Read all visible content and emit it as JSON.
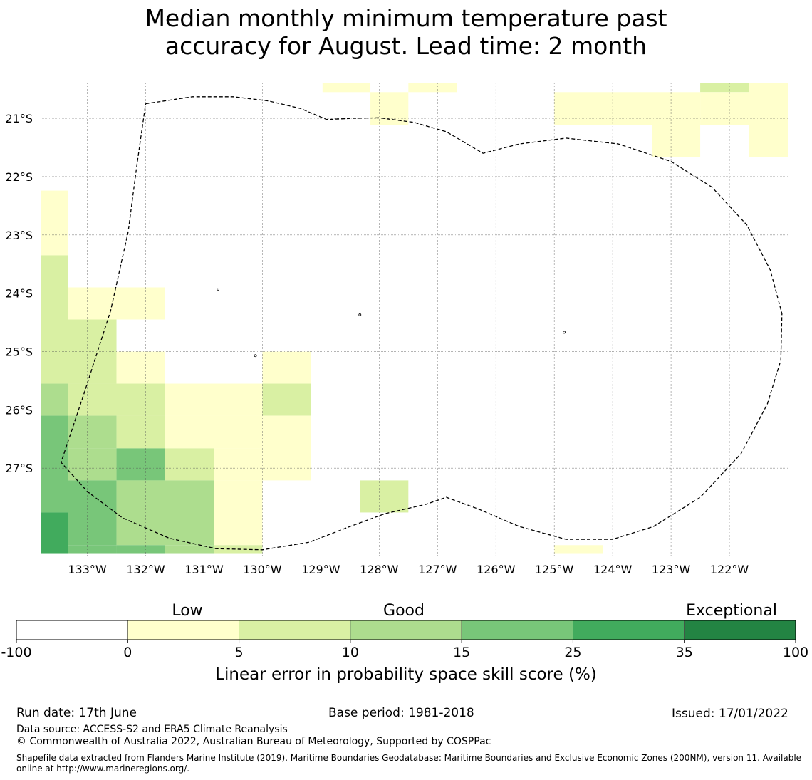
{
  "title_line1": "Median monthly minimum temperature past",
  "title_line2": "accuracy for August. Lead time: 2 month",
  "map": {
    "lat_ticks": [
      {
        "value": -21,
        "label": "21°S"
      },
      {
        "value": -22,
        "label": "22°S"
      },
      {
        "value": -23,
        "label": "23°S"
      },
      {
        "value": -24,
        "label": "24°S"
      },
      {
        "value": -25,
        "label": "25°S"
      },
      {
        "value": -26,
        "label": "26°S"
      },
      {
        "value": -27,
        "label": "27°S"
      }
    ],
    "lon_ticks": [
      {
        "value": -133,
        "label": "133°W"
      },
      {
        "value": -132,
        "label": "132°W"
      },
      {
        "value": -131,
        "label": "131°W"
      },
      {
        "value": -130,
        "label": "130°W"
      },
      {
        "value": -129,
        "label": "129°W"
      },
      {
        "value": -128,
        "label": "128°W"
      },
      {
        "value": -127,
        "label": "127°W"
      },
      {
        "value": -126,
        "label": "126°W"
      },
      {
        "value": -125,
        "label": "125°W"
      },
      {
        "value": -124,
        "label": "124°W"
      },
      {
        "value": -123,
        "label": "123°W"
      },
      {
        "value": -122,
        "label": "122°W"
      }
    ],
    "lon_range": [
      -133.8,
      -121.0
    ],
    "lat_range": [
      -28.5,
      -20.4
    ],
    "grid": true,
    "colors": [
      "#ffffff",
      "#ffffcc",
      "#d9f0a3",
      "#addd8e",
      "#78c679",
      "#41ab5d",
      "#238443"
    ],
    "cells": [
      {
        "lon": [
          -128.97,
          -128.15
        ],
        "lat": [
          -20.55,
          -20.4
        ],
        "cls": 1
      },
      {
        "lon": [
          -127.5,
          -126.67
        ],
        "lat": [
          -20.55,
          -20.4
        ],
        "cls": 1
      },
      {
        "lon": [
          -122.5,
          -121.67
        ],
        "lat": [
          -20.55,
          -20.4
        ],
        "cls": 2
      },
      {
        "lon": [
          -128.15,
          -127.5
        ],
        "lat": [
          -21.11,
          -20.55
        ],
        "cls": 1
      },
      {
        "lon": [
          -125.0,
          -123.33
        ],
        "lat": [
          -21.11,
          -20.55
        ],
        "cls": 1
      },
      {
        "lon": [
          -123.33,
          -122.5
        ],
        "lat": [
          -21.66,
          -20.55
        ],
        "cls": 1
      },
      {
        "lon": [
          -122.5,
          -121.67
        ],
        "lat": [
          -21.11,
          -20.55
        ],
        "cls": 1
      },
      {
        "lon": [
          -121.67,
          -121.0
        ],
        "lat": [
          -21.66,
          -20.4
        ],
        "cls": 1
      },
      {
        "lon": [
          -133.8,
          -133.33
        ],
        "lat": [
          -23.35,
          -22.24
        ],
        "cls": 1
      },
      {
        "lon": [
          -133.8,
          -133.33
        ],
        "lat": [
          -25.55,
          -23.35
        ],
        "cls": 2
      },
      {
        "lon": [
          -133.33,
          -131.67
        ],
        "lat": [
          -24.45,
          -23.9
        ],
        "cls": 1
      },
      {
        "lon": [
          -133.33,
          -132.5
        ],
        "lat": [
          -25.55,
          -24.45
        ],
        "cls": 2
      },
      {
        "lon": [
          -132.5,
          -131.67
        ],
        "lat": [
          -25.55,
          -25.0
        ],
        "cls": 1
      },
      {
        "lon": [
          -130.0,
          -129.17
        ],
        "lat": [
          -25.55,
          -25.0
        ],
        "cls": 1
      },
      {
        "lon": [
          -133.8,
          -133.33
        ],
        "lat": [
          -26.1,
          -25.55
        ],
        "cls": 3
      },
      {
        "lon": [
          -133.33,
          -131.67
        ],
        "lat": [
          -26.1,
          -25.55
        ],
        "cls": 2
      },
      {
        "lon": [
          -131.67,
          -130.0
        ],
        "lat": [
          -26.1,
          -25.55
        ],
        "cls": 1
      },
      {
        "lon": [
          -130.0,
          -129.17
        ],
        "lat": [
          -26.1,
          -25.55
        ],
        "cls": 2
      },
      {
        "lon": [
          -133.8,
          -133.33
        ],
        "lat": [
          -27.76,
          -26.1
        ],
        "cls": 4
      },
      {
        "lon": [
          -133.33,
          -132.5
        ],
        "lat": [
          -26.66,
          -26.1
        ],
        "cls": 3
      },
      {
        "lon": [
          -132.5,
          -131.67
        ],
        "lat": [
          -26.66,
          -26.1
        ],
        "cls": 2
      },
      {
        "lon": [
          -131.67,
          -130.0
        ],
        "lat": [
          -26.66,
          -26.1
        ],
        "cls": 1
      },
      {
        "lon": [
          -130.0,
          -129.17
        ],
        "lat": [
          -27.21,
          -26.1
        ],
        "cls": 1
      },
      {
        "lon": [
          -133.33,
          -132.5
        ],
        "lat": [
          -27.21,
          -26.66
        ],
        "cls": 3
      },
      {
        "lon": [
          -132.5,
          -131.67
        ],
        "lat": [
          -27.21,
          -26.66
        ],
        "cls": 4
      },
      {
        "lon": [
          -131.67,
          -130.83
        ],
        "lat": [
          -27.21,
          -26.66
        ],
        "cls": 2
      },
      {
        "lon": [
          -130.83,
          -130.0
        ],
        "lat": [
          -27.21,
          -26.66
        ],
        "cls": 1
      },
      {
        "lon": [
          -133.33,
          -132.5
        ],
        "lat": [
          -28.32,
          -27.21
        ],
        "cls": 4
      },
      {
        "lon": [
          -132.5,
          -130.83
        ],
        "lat": [
          -28.32,
          -27.21
        ],
        "cls": 3
      },
      {
        "lon": [
          -130.83,
          -130.0
        ],
        "lat": [
          -28.32,
          -27.21
        ],
        "cls": 1
      },
      {
        "lon": [
          -133.8,
          -133.33
        ],
        "lat": [
          -28.47,
          -27.76
        ],
        "cls": 5
      },
      {
        "lon": [
          -133.33,
          -132.5
        ],
        "lat": [
          -28.47,
          -28.32
        ],
        "cls": 4
      },
      {
        "lon": [
          -132.5,
          -131.67
        ],
        "lat": [
          -28.47,
          -28.32
        ],
        "cls": 4
      },
      {
        "lon": [
          -131.67,
          -130.83
        ],
        "lat": [
          -28.47,
          -28.32
        ],
        "cls": 3
      },
      {
        "lon": [
          -130.83,
          -130.0
        ],
        "lat": [
          -28.47,
          -28.32
        ],
        "cls": 2
      },
      {
        "lon": [
          -128.33,
          -127.5
        ],
        "lat": [
          -27.76,
          -27.21
        ],
        "cls": 2
      },
      {
        "lon": [
          -125.0,
          -124.17
        ],
        "lat": [
          -28.47,
          -28.32
        ],
        "cls": 1
      }
    ],
    "eez_boundary": [
      [
        -132.0,
        -20.75
      ],
      [
        -131.2,
        -20.63
      ],
      [
        -130.5,
        -20.63
      ],
      [
        -129.9,
        -20.7
      ],
      [
        -129.35,
        -20.83
      ],
      [
        -128.9,
        -21.02
      ],
      [
        -128.45,
        -21.0
      ],
      [
        -128.0,
        -20.99
      ],
      [
        -127.4,
        -21.07
      ],
      [
        -126.85,
        -21.23
      ],
      [
        -126.22,
        -21.6
      ],
      [
        -125.6,
        -21.44
      ],
      [
        -124.8,
        -21.34
      ],
      [
        -123.9,
        -21.44
      ],
      [
        -123.0,
        -21.74
      ],
      [
        -122.3,
        -22.18
      ],
      [
        -121.7,
        -22.83
      ],
      [
        -121.3,
        -23.6
      ],
      [
        -121.1,
        -24.35
      ],
      [
        -121.12,
        -25.15
      ],
      [
        -121.35,
        -25.9
      ],
      [
        -121.8,
        -26.75
      ],
      [
        -122.5,
        -27.5
      ],
      [
        -123.3,
        -28.0
      ],
      [
        -124.0,
        -28.22
      ],
      [
        -124.8,
        -28.22
      ],
      [
        -125.6,
        -28.0
      ],
      [
        -126.3,
        -27.7
      ],
      [
        -126.85,
        -27.5
      ],
      [
        -127.2,
        -27.62
      ],
      [
        -127.9,
        -27.78
      ],
      [
        -128.5,
        -28.0
      ],
      [
        -129.2,
        -28.27
      ],
      [
        -130.0,
        -28.4
      ],
      [
        -130.8,
        -28.38
      ],
      [
        -131.6,
        -28.2
      ],
      [
        -132.4,
        -27.85
      ],
      [
        -133.0,
        -27.4
      ],
      [
        -133.45,
        -26.9
      ],
      [
        -133.05,
        -25.7
      ],
      [
        -132.6,
        -24.3
      ],
      [
        -132.3,
        -22.95
      ],
      [
        -132.15,
        -21.8
      ],
      [
        -132.0,
        -20.75
      ]
    ],
    "islands": [
      [
        -130.76,
        -23.93
      ],
      [
        -128.33,
        -24.37
      ],
      [
        -130.12,
        -25.07
      ],
      [
        -124.83,
        -24.67
      ]
    ]
  },
  "colorbar": {
    "ticks": [
      "-100",
      "0",
      "5",
      "10",
      "15",
      "25",
      "35",
      "100"
    ],
    "categories": [
      "Low",
      "Good",
      "Exceptional"
    ],
    "label": "Linear error in probability space skill score (%)"
  },
  "footer": {
    "run_date": "Run date: 17th June",
    "base_period": "Base period: 1981-2018",
    "issued": "Issued: 17/01/2022",
    "data_source": "Data source: ACCESS-S2 and ERA5 Climate Reanalysis",
    "copyright": "© Commonwealth of Australia 2022, Australian Bureau of Meteorology, Supported by COSPPac",
    "shapefile": "Shapefile data extracted from Flanders Marine Institute (2019), Maritime Boundaries Geodatabase: Maritime Boundaries and Exclusive Economic Zones (200NM), version 11. Available online at http://www.marineregions.org/."
  }
}
